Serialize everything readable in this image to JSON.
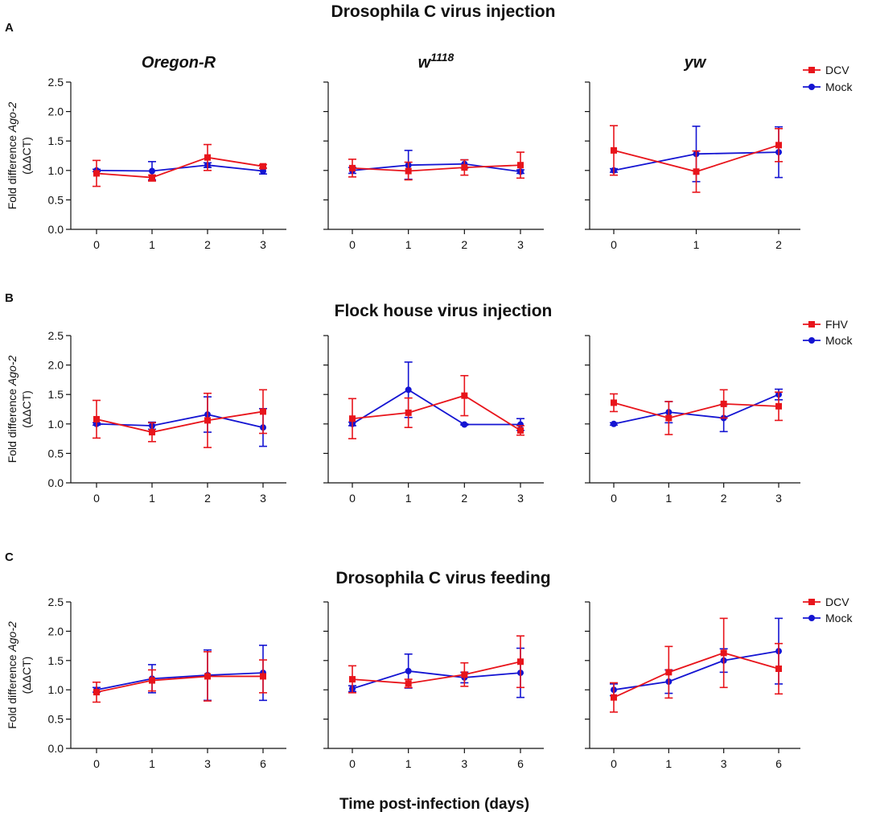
{
  "figure": {
    "x_axis_label": "Time post-infection (days)",
    "y_axis_label": {
      "line1_prefix": "Fold difference ",
      "line1_gene": "Ago-2",
      "line2": "(ΔΔCT)"
    }
  },
  "chart_data": [
    {
      "type": "line",
      "letter": "A",
      "title": "Drosophila C virus injection",
      "ylim": [
        0,
        2.5
      ],
      "yticks": [
        "0.0",
        "0.5",
        "1.0",
        "1.5",
        "2.0",
        "2.5"
      ],
      "legend": [
        {
          "name": "DCV",
          "color": "#e8141b",
          "marker": "square"
        },
        {
          "name": "Mock",
          "color": "#1414d2",
          "marker": "circle"
        }
      ],
      "subplots": [
        {
          "strain": {
            "base": "Oregon-R",
            "sup": ""
          },
          "x": [
            "0",
            "1",
            "2",
            "3"
          ],
          "series": [
            {
              "name": "DCV",
              "values": [
                0.95,
                0.88,
                1.22,
                1.07
              ],
              "err_low": [
                0.22,
                0.06,
                0.22,
                0.03
              ],
              "err_high": [
                0.22,
                0.04,
                0.22,
                0.03
              ]
            },
            {
              "name": "Mock",
              "values": [
                1.0,
                0.99,
                1.09,
                0.99
              ],
              "err_low": [
                0.02,
                0.15,
                0.04,
                0.05
              ],
              "err_high": [
                0.02,
                0.16,
                0.04,
                0.05
              ]
            }
          ]
        },
        {
          "strain": {
            "base": "w",
            "sup": "1118"
          },
          "x": [
            "0",
            "1",
            "2",
            "3"
          ],
          "series": [
            {
              "name": "DCV",
              "values": [
                1.04,
                0.99,
                1.05,
                1.09
              ],
              "err_low": [
                0.15,
                0.15,
                0.13,
                0.22
              ],
              "err_high": [
                0.15,
                0.15,
                0.13,
                0.22
              ]
            },
            {
              "name": "Mock",
              "values": [
                1.0,
                1.09,
                1.11,
                0.98
              ],
              "err_low": [
                0.05,
                0.24,
                0.07,
                0.03
              ],
              "err_high": [
                0.05,
                0.25,
                0.07,
                0.03
              ]
            }
          ]
        },
        {
          "strain": {
            "base": "yw",
            "sup": ""
          },
          "x": [
            "0",
            "1",
            "2"
          ],
          "series": [
            {
              "name": "DCV",
              "values": [
                1.34,
                0.98,
                1.43
              ],
              "err_low": [
                0.42,
                0.35,
                0.28
              ],
              "err_high": [
                0.42,
                0.35,
                0.28
              ]
            },
            {
              "name": "Mock",
              "values": [
                1.0,
                1.28,
                1.31
              ],
              "err_low": [
                0.03,
                0.47,
                0.43
              ],
              "err_high": [
                0.03,
                0.47,
                0.43
              ]
            }
          ]
        }
      ]
    },
    {
      "type": "line",
      "letter": "B",
      "title": "Flock house virus injection",
      "ylim": [
        0,
        2.5
      ],
      "yticks": [
        "0.0",
        "0.5",
        "1.0",
        "1.5",
        "2.0",
        "2.5"
      ],
      "legend": [
        {
          "name": "FHV",
          "color": "#e8141b",
          "marker": "square"
        },
        {
          "name": "Mock",
          "color": "#1414d2",
          "marker": "circle"
        }
      ],
      "subplots": [
        {
          "strain": {
            "base": "",
            "sup": ""
          },
          "x": [
            "0",
            "1",
            "2",
            "3"
          ],
          "series": [
            {
              "name": "FHV",
              "values": [
                1.08,
                0.86,
                1.06,
                1.21
              ],
              "err_low": [
                0.32,
                0.16,
                0.46,
                0.37
              ],
              "err_high": [
                0.32,
                0.16,
                0.46,
                0.37
              ]
            },
            {
              "name": "Mock",
              "values": [
                1.0,
                0.97,
                1.16,
                0.94
              ],
              "err_low": [
                0.02,
                0.06,
                0.3,
                0.32
              ],
              "err_high": [
                0.02,
                0.06,
                0.3,
                0.32
              ]
            }
          ]
        },
        {
          "strain": {
            "base": "",
            "sup": ""
          },
          "x": [
            "0",
            "1",
            "2",
            "3"
          ],
          "series": [
            {
              "name": "FHV",
              "values": [
                1.09,
                1.19,
                1.48,
                0.89
              ],
              "err_low": [
                0.34,
                0.25,
                0.34,
                0.08
              ],
              "err_high": [
                0.34,
                0.25,
                0.34,
                0.08
              ]
            },
            {
              "name": "Mock",
              "values": [
                1.0,
                1.58,
                0.99,
                0.99
              ],
              "err_low": [
                0.03,
                0.47,
                0.01,
                0.1
              ],
              "err_high": [
                0.03,
                0.47,
                0.01,
                0.1
              ]
            }
          ]
        },
        {
          "strain": {
            "base": "",
            "sup": ""
          },
          "x": [
            "0",
            "1",
            "2",
            "3"
          ],
          "series": [
            {
              "name": "FHV",
              "values": [
                1.36,
                1.1,
                1.34,
                1.3
              ],
              "err_low": [
                0.15,
                0.28,
                0.24,
                0.24
              ],
              "err_high": [
                0.15,
                0.28,
                0.24,
                0.24
              ]
            },
            {
              "name": "Mock",
              "values": [
                1.0,
                1.2,
                1.1,
                1.5
              ],
              "err_low": [
                0.02,
                0.18,
                0.23,
                0.09
              ],
              "err_high": [
                0.02,
                0.18,
                0.23,
                0.09
              ]
            }
          ]
        }
      ]
    },
    {
      "type": "line",
      "letter": "C",
      "title": "Drosophila C virus feeding",
      "ylim": [
        0,
        2.5
      ],
      "yticks": [
        "0.0",
        "0.5",
        "1.0",
        "1.5",
        "2.0",
        "2.5"
      ],
      "legend": [
        {
          "name": "DCV",
          "color": "#e8141b",
          "marker": "square"
        },
        {
          "name": "Mock",
          "color": "#1414d2",
          "marker": "circle"
        }
      ],
      "subplots": [
        {
          "strain": {
            "base": "",
            "sup": ""
          },
          "x": [
            "0",
            "1",
            "3",
            "6"
          ],
          "series": [
            {
              "name": "DCV",
              "values": [
                0.96,
                1.16,
                1.23,
                1.23
              ],
              "err_low": [
                0.17,
                0.18,
                0.42,
                0.28
              ],
              "err_high": [
                0.17,
                0.18,
                0.42,
                0.28
              ]
            },
            {
              "name": "Mock",
              "values": [
                1.0,
                1.19,
                1.25,
                1.29
              ],
              "err_low": [
                0.04,
                0.24,
                0.43,
                0.47
              ],
              "err_high": [
                0.04,
                0.24,
                0.43,
                0.47
              ]
            }
          ]
        },
        {
          "strain": {
            "base": "",
            "sup": ""
          },
          "x": [
            "0",
            "1",
            "3",
            "6"
          ],
          "series": [
            {
              "name": "DCV",
              "values": [
                1.18,
                1.11,
                1.26,
                1.48
              ],
              "err_low": [
                0.23,
                0.07,
                0.2,
                0.44
              ],
              "err_high": [
                0.23,
                0.07,
                0.2,
                0.44
              ]
            },
            {
              "name": "Mock",
              "values": [
                1.02,
                1.32,
                1.21,
                1.29
              ],
              "err_low": [
                0.05,
                0.29,
                0.09,
                0.42
              ],
              "err_high": [
                0.05,
                0.29,
                0.09,
                0.42
              ]
            }
          ]
        },
        {
          "strain": {
            "base": "",
            "sup": ""
          },
          "x": [
            "0",
            "1",
            "3",
            "6"
          ],
          "series": [
            {
              "name": "DCV",
              "values": [
                0.87,
                1.3,
                1.63,
                1.36
              ],
              "err_low": [
                0.25,
                0.44,
                0.59,
                0.43
              ],
              "err_high": [
                0.25,
                0.44,
                0.59,
                0.43
              ]
            },
            {
              "name": "Mock",
              "values": [
                1.0,
                1.14,
                1.5,
                1.66
              ],
              "err_low": [
                0.1,
                0.2,
                0.2,
                0.56
              ],
              "err_high": [
                0.1,
                0.2,
                0.2,
                0.56
              ]
            }
          ]
        }
      ]
    }
  ]
}
